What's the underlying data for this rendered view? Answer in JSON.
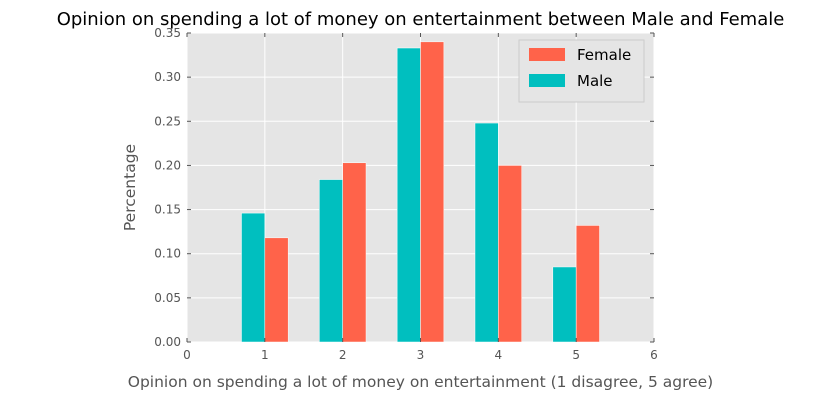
{
  "chart_data": {
    "type": "bar",
    "title": "Opinion on spending a lot of money on entertainment between Male and Female",
    "xlabel": "Opinion on spending a lot of money on entertainment (1 disagree, 5 agree)",
    "ylabel": "Percentage",
    "xlim": [
      0,
      6
    ],
    "ylim": [
      0,
      0.35
    ],
    "xticks": [
      "0",
      "1",
      "2",
      "3",
      "4",
      "5",
      "6"
    ],
    "yticks": [
      "0.00",
      "0.05",
      "0.10",
      "0.15",
      "0.20",
      "0.25",
      "0.30",
      "0.35"
    ],
    "grid": true,
    "legend_position": "top-right",
    "categories": [
      1,
      2,
      3,
      4,
      5
    ],
    "series": [
      {
        "name": "Female",
        "color": "#ff634a",
        "values": [
          0.118,
          0.203,
          0.34,
          0.2,
          0.132
        ]
      },
      {
        "name": "Male",
        "color": "#00bfbf",
        "values": [
          0.146,
          0.184,
          0.333,
          0.248,
          0.085
        ]
      }
    ]
  }
}
